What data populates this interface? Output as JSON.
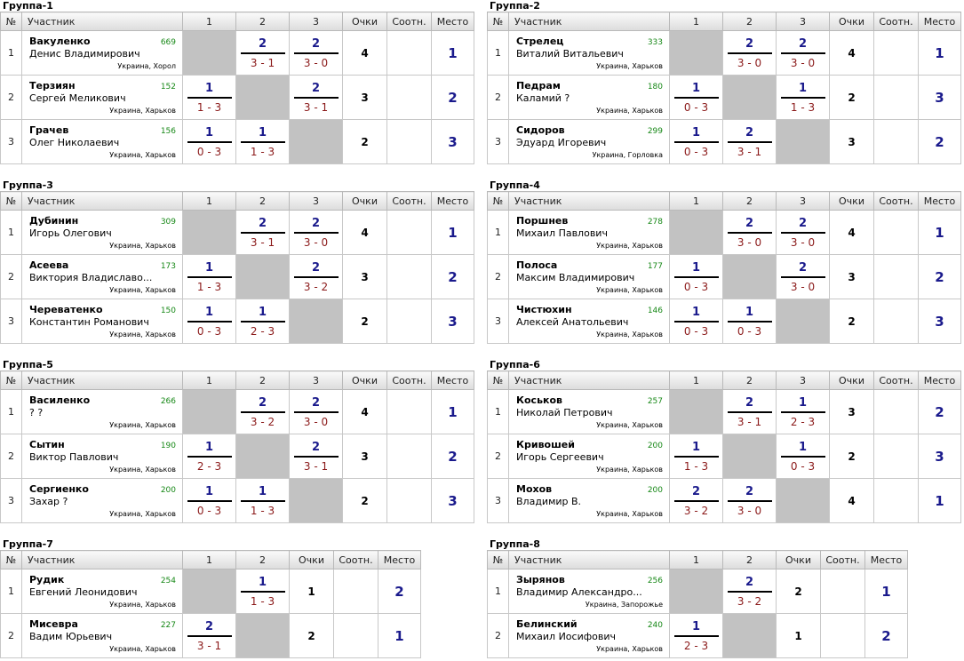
{
  "headers": {
    "num": "№",
    "participant": "Участник",
    "points": "Очки",
    "ratio": "Соотн.",
    "place": "Место",
    "cols": [
      "1",
      "2",
      "3"
    ]
  },
  "groups": [
    {
      "title": "Группа-1",
      "players": [
        {
          "num": "1",
          "last": "Вакуленко",
          "first": "Денис Владимирович",
          "rating": "669",
          "loc": "Украина, Хорол",
          "points": "4",
          "ratio": "",
          "place": "1",
          "results": [
            null,
            {
              "p": "2",
              "s": "3 - 1"
            },
            {
              "p": "2",
              "s": "3 - 0"
            }
          ]
        },
        {
          "num": "2",
          "last": "Терзиян",
          "first": "Сергей Меликович",
          "rating": "152",
          "loc": "Украина, Харьков",
          "points": "3",
          "ratio": "",
          "place": "2",
          "results": [
            {
              "p": "1",
              "s": "1 - 3"
            },
            null,
            {
              "p": "2",
              "s": "3 - 1"
            }
          ]
        },
        {
          "num": "3",
          "last": "Грачев",
          "first": "Олег Николаевич",
          "rating": "156",
          "loc": "Украина, Харьков",
          "points": "2",
          "ratio": "",
          "place": "3",
          "results": [
            {
              "p": "1",
              "s": "0 - 3"
            },
            {
              "p": "1",
              "s": "1 - 3"
            },
            null
          ]
        }
      ]
    },
    {
      "title": "Группа-2",
      "players": [
        {
          "num": "1",
          "last": "Стрелец",
          "first": "Виталий Витальевич",
          "rating": "333",
          "loc": "Украина, Харьков",
          "points": "4",
          "ratio": "",
          "place": "1",
          "results": [
            null,
            {
              "p": "2",
              "s": "3 - 0"
            },
            {
              "p": "2",
              "s": "3 - 0"
            }
          ]
        },
        {
          "num": "2",
          "last": "Педрам",
          "first": "Каламий ?",
          "rating": "180",
          "loc": "Украина, Харьков",
          "points": "2",
          "ratio": "",
          "place": "3",
          "results": [
            {
              "p": "1",
              "s": "0 - 3"
            },
            null,
            {
              "p": "1",
              "s": "1 - 3"
            }
          ]
        },
        {
          "num": "3",
          "last": "Сидоров",
          "first": "Эдуард Игоревич",
          "rating": "299",
          "loc": "Украина, Горловка",
          "points": "3",
          "ratio": "",
          "place": "2",
          "results": [
            {
              "p": "1",
              "s": "0 - 3"
            },
            {
              "p": "2",
              "s": "3 - 1"
            },
            null
          ]
        }
      ]
    },
    {
      "title": "Группа-3",
      "players": [
        {
          "num": "1",
          "last": "Дубинин",
          "first": "Игорь Олегович",
          "rating": "309",
          "loc": "Украина, Харьков",
          "points": "4",
          "ratio": "",
          "place": "1",
          "results": [
            null,
            {
              "p": "2",
              "s": "3 - 1"
            },
            {
              "p": "2",
              "s": "3 - 0"
            }
          ]
        },
        {
          "num": "2",
          "last": "Асеева",
          "first": "Виктория Владиславо...",
          "rating": "173",
          "loc": "Украина, Харьков",
          "points": "3",
          "ratio": "",
          "place": "2",
          "results": [
            {
              "p": "1",
              "s": "1 - 3"
            },
            null,
            {
              "p": "2",
              "s": "3 - 2"
            }
          ]
        },
        {
          "num": "3",
          "last": "Череватенко",
          "first": "Константин Романович",
          "rating": "150",
          "loc": "Украина, Харьков",
          "points": "2",
          "ratio": "",
          "place": "3",
          "results": [
            {
              "p": "1",
              "s": "0 - 3"
            },
            {
              "p": "1",
              "s": "2 - 3"
            },
            null
          ]
        }
      ]
    },
    {
      "title": "Группа-4",
      "players": [
        {
          "num": "1",
          "last": "Поршнев",
          "first": "Михаил Павлович",
          "rating": "278",
          "loc": "Украина, Харьков",
          "points": "4",
          "ratio": "",
          "place": "1",
          "results": [
            null,
            {
              "p": "2",
              "s": "3 - 0"
            },
            {
              "p": "2",
              "s": "3 - 0"
            }
          ]
        },
        {
          "num": "2",
          "last": "Полоса",
          "first": "Максим Владимирович",
          "rating": "177",
          "loc": "Украина, Харьков",
          "points": "3",
          "ratio": "",
          "place": "2",
          "results": [
            {
              "p": "1",
              "s": "0 - 3"
            },
            null,
            {
              "p": "2",
              "s": "3 - 0"
            }
          ]
        },
        {
          "num": "3",
          "last": "Чистюхин",
          "first": "Алексей Анатольевич",
          "rating": "146",
          "loc": "Украина, Харьков",
          "points": "2",
          "ratio": "",
          "place": "3",
          "results": [
            {
              "p": "1",
              "s": "0 - 3"
            },
            {
              "p": "1",
              "s": "0 - 3"
            },
            null
          ]
        }
      ]
    },
    {
      "title": "Группа-5",
      "players": [
        {
          "num": "1",
          "last": "Василенко",
          "first": "? ?",
          "rating": "266",
          "loc": "Украина, Харьков",
          "points": "4",
          "ratio": "",
          "place": "1",
          "results": [
            null,
            {
              "p": "2",
              "s": "3 - 2"
            },
            {
              "p": "2",
              "s": "3 - 0"
            }
          ]
        },
        {
          "num": "2",
          "last": "Сытин",
          "first": "Виктор Павлович",
          "rating": "190",
          "loc": "Украина, Харьков",
          "points": "3",
          "ratio": "",
          "place": "2",
          "results": [
            {
              "p": "1",
              "s": "2 - 3"
            },
            null,
            {
              "p": "2",
              "s": "3 - 1"
            }
          ]
        },
        {
          "num": "3",
          "last": "Сергиенко",
          "first": "Захар ?",
          "rating": "200",
          "loc": "Украина, Харьков",
          "points": "2",
          "ratio": "",
          "place": "3",
          "results": [
            {
              "p": "1",
              "s": "0 - 3"
            },
            {
              "p": "1",
              "s": "1 - 3"
            },
            null
          ]
        }
      ]
    },
    {
      "title": "Группа-6",
      "players": [
        {
          "num": "1",
          "last": "Коськов",
          "first": "Николай Петрович",
          "rating": "257",
          "loc": "Украина, Харьков",
          "points": "3",
          "ratio": "",
          "place": "2",
          "results": [
            null,
            {
              "p": "2",
              "s": "3 - 1"
            },
            {
              "p": "1",
              "s": "2 - 3"
            }
          ]
        },
        {
          "num": "2",
          "last": "Кривошей",
          "first": "Игорь Сергеевич",
          "rating": "200",
          "loc": "Украина, Харьков",
          "points": "2",
          "ratio": "",
          "place": "3",
          "results": [
            {
              "p": "1",
              "s": "1 - 3"
            },
            null,
            {
              "p": "1",
              "s": "0 - 3"
            }
          ]
        },
        {
          "num": "3",
          "last": "Мохов",
          "first": "Владимир В.",
          "rating": "200",
          "loc": "Украина, Харьков",
          "points": "4",
          "ratio": "",
          "place": "1",
          "results": [
            {
              "p": "2",
              "s": "3 - 2"
            },
            {
              "p": "2",
              "s": "3 - 0"
            },
            null
          ]
        }
      ]
    },
    {
      "title": "Группа-7",
      "players": [
        {
          "num": "1",
          "last": "Рудик",
          "first": "Евгений Леонидович",
          "rating": "254",
          "loc": "Украина, Харьков",
          "points": "1",
          "ratio": "",
          "place": "2",
          "results": [
            null,
            {
              "p": "1",
              "s": "1 - 3"
            }
          ]
        },
        {
          "num": "2",
          "last": "Мисевра",
          "first": "Вадим Юрьевич",
          "rating": "227",
          "loc": "Украина, Харьков",
          "points": "2",
          "ratio": "",
          "place": "1",
          "results": [
            {
              "p": "2",
              "s": "3 - 1"
            },
            null
          ]
        }
      ]
    },
    {
      "title": "Группа-8",
      "players": [
        {
          "num": "1",
          "last": "Зырянов",
          "first": "Владимир Александро...",
          "rating": "256",
          "loc": "Украина, Запорожье",
          "points": "2",
          "ratio": "",
          "place": "1",
          "results": [
            null,
            {
              "p": "2",
              "s": "3 - 2"
            }
          ]
        },
        {
          "num": "2",
          "last": "Белинский",
          "first": "Михаил Иосифович",
          "rating": "240",
          "loc": "Украина, Харьков",
          "points": "1",
          "ratio": "",
          "place": "2",
          "results": [
            {
              "p": "1",
              "s": "2 - 3"
            },
            null
          ]
        }
      ]
    }
  ]
}
